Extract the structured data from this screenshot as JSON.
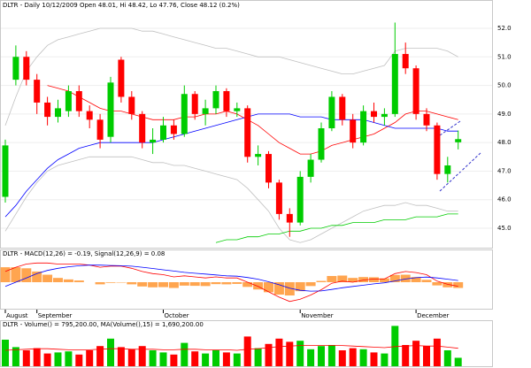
{
  "chart_data": [
    {
      "type": "candlestick",
      "title": "DLTR - Daily 10/12/2009 Open 48.01, Hi 48.42, Lo 47.76, Close 48.12 (0.2%)",
      "categories": [
        "August",
        null,
        null,
        "September",
        null,
        null,
        null,
        null,
        null,
        null,
        null,
        null,
        null,
        null,
        null,
        "October",
        null,
        null,
        null,
        null,
        null,
        null,
        null,
        null,
        null,
        null,
        null,
        null,
        "November",
        null,
        null,
        null,
        null,
        null,
        null,
        null,
        null,
        null,
        null,
        "December",
        null,
        null,
        null,
        null
      ],
      "open": [
        46.1,
        50.2,
        51.0,
        50.2,
        49.4,
        48.9,
        49.1,
        49.8,
        49.1,
        48.8,
        48.2,
        50.9,
        49.6,
        49.0,
        48.0,
        48.1,
        48.6,
        48.3,
        49.7,
        49.0,
        49.2,
        49.8,
        49.1,
        49.2,
        47.5,
        47.6,
        46.6,
        45.5,
        45.2,
        46.8,
        47.4,
        48.5,
        49.6,
        48.8,
        48.0,
        49.1,
        48.9,
        49.0,
        51.1,
        50.6,
        49.0,
        48.6,
        46.9,
        48.01
      ],
      "high": [
        48.1,
        51.4,
        51.2,
        50.4,
        49.6,
        49.5,
        50.0,
        50.0,
        49.3,
        49.0,
        50.3,
        51.0,
        49.8,
        49.1,
        48.5,
        48.9,
        48.8,
        50.0,
        49.8,
        49.5,
        50.0,
        49.9,
        49.4,
        49.3,
        47.9,
        47.7,
        46.7,
        45.7,
        47.0,
        47.6,
        48.7,
        49.8,
        49.7,
        49.0,
        49.3,
        49.4,
        49.2,
        52.2,
        51.5,
        50.7,
        49.2,
        48.7,
        47.5,
        48.42
      ],
      "low": [
        45.9,
        50.0,
        50.0,
        49.0,
        48.6,
        48.7,
        48.9,
        48.9,
        48.5,
        47.8,
        48.0,
        49.4,
        48.8,
        47.8,
        47.6,
        48.0,
        48.1,
        48.2,
        48.8,
        48.6,
        49.0,
        48.9,
        48.9,
        47.3,
        47.2,
        46.4,
        45.3,
        44.7,
        45.1,
        46.6,
        47.3,
        48.4,
        48.6,
        47.8,
        47.9,
        48.7,
        48.6,
        48.9,
        50.4,
        48.8,
        48.4,
        46.7,
        46.6,
        47.76
      ],
      "close": [
        47.9,
        51.0,
        50.2,
        49.4,
        48.9,
        49.2,
        49.8,
        49.1,
        48.8,
        48.1,
        50.1,
        49.6,
        49.0,
        48.0,
        48.1,
        48.6,
        48.3,
        49.7,
        49.0,
        49.2,
        49.8,
        49.1,
        49.2,
        47.5,
        47.6,
        46.6,
        45.5,
        45.2,
        46.8,
        47.4,
        48.5,
        49.6,
        48.8,
        48.0,
        49.1,
        48.9,
        49.0,
        51.1,
        50.6,
        49.0,
        48.6,
        46.9,
        47.2,
        48.12
      ],
      "up_color": "#00cc00",
      "down_color": "#ff0000",
      "series": [
        {
          "color": "#c0c0c0",
          "values": [
            48.6,
            49.6,
            50.5,
            51.0,
            51.4,
            51.6,
            51.7,
            51.8,
            51.9,
            52.0,
            52.0,
            52.0,
            52.0,
            51.9,
            51.9,
            51.8,
            51.7,
            51.6,
            51.5,
            51.4,
            51.3,
            51.3,
            51.2,
            51.1,
            51.0,
            51.0,
            51.0,
            50.9,
            50.8,
            50.7,
            50.6,
            50.5,
            50.4,
            50.4,
            50.5,
            50.6,
            50.7,
            51.2,
            51.3,
            51.3,
            51.3,
            51.3,
            51.2,
            51.0
          ]
        },
        {
          "color": "#c0c0c0",
          "values": [
            44.9,
            45.5,
            46.1,
            46.6,
            47.0,
            47.2,
            47.3,
            47.4,
            47.5,
            47.5,
            47.5,
            47.5,
            47.5,
            47.4,
            47.3,
            47.3,
            47.2,
            47.2,
            47.1,
            47.0,
            46.9,
            46.8,
            46.7,
            46.4,
            46.0,
            45.6,
            45.0,
            44.6,
            44.5,
            44.6,
            44.8,
            45.0,
            45.2,
            45.4,
            45.6,
            45.7,
            45.8,
            45.8,
            45.9,
            45.8,
            45.8,
            45.7,
            45.6,
            45.6
          ]
        },
        {
          "color": "#ff0000",
          "values": [
            null,
            null,
            null,
            null,
            50.0,
            49.9,
            49.8,
            49.6,
            49.4,
            49.2,
            49.1,
            49.1,
            49.0,
            48.9,
            48.8,
            48.8,
            48.8,
            48.9,
            48.9,
            49.0,
            49.0,
            49.1,
            49.0,
            48.8,
            48.6,
            48.3,
            48.0,
            47.8,
            47.6,
            47.6,
            47.7,
            47.9,
            48.0,
            48.1,
            48.2,
            48.3,
            48.5,
            48.7,
            49.0,
            49.1,
            49.1,
            49.0,
            48.9,
            48.8
          ]
        },
        {
          "color": "#0000ff",
          "values": [
            45.4,
            45.8,
            46.3,
            46.7,
            47.1,
            47.4,
            47.6,
            47.8,
            47.9,
            48.0,
            48.0,
            48.0,
            48.0,
            48.0,
            48.0,
            48.1,
            48.2,
            48.3,
            48.4,
            48.5,
            48.6,
            48.7,
            48.8,
            48.9,
            49.0,
            49.0,
            49.0,
            49.0,
            48.9,
            48.9,
            48.9,
            48.8,
            48.8,
            48.8,
            48.8,
            48.7,
            48.6,
            48.5,
            48.5,
            48.5,
            48.5,
            48.5,
            48.4,
            48.4
          ]
        },
        {
          "color": "#00cc00",
          "values": [
            null,
            null,
            null,
            null,
            null,
            null,
            null,
            null,
            null,
            null,
            null,
            null,
            null,
            null,
            null,
            null,
            null,
            null,
            null,
            null,
            44.5,
            44.6,
            44.6,
            44.7,
            44.7,
            44.8,
            44.8,
            44.9,
            44.9,
            45.0,
            45.0,
            45.1,
            45.1,
            45.2,
            45.2,
            45.2,
            45.3,
            45.3,
            45.3,
            45.4,
            45.4,
            45.4,
            45.5,
            45.5
          ]
        }
      ],
      "ylim": [
        44.32,
        52.99
      ],
      "yticks": [
        {
          "value": 45,
          "label": "45.0"
        },
        {
          "value": 46,
          "label": "46.0"
        },
        {
          "value": 47,
          "label": "47.0"
        },
        {
          "value": 48,
          "label": "48.0"
        },
        {
          "value": 49,
          "label": "49.0"
        },
        {
          "value": 50,
          "label": "50.0"
        },
        {
          "value": 51,
          "label": "51.0"
        },
        {
          "value": 52,
          "label": "52.0"
        }
      ]
    },
    {
      "type": "macd",
      "title": "DLTR - MACD(12,26) = -0.19, Signal(12,26,9) = 0.08",
      "histogram_color": "#ffa54f",
      "histogram": [
        0.7,
        0.7,
        0.65,
        0.5,
        0.35,
        0.2,
        0.13,
        0.08,
        0,
        -0.1,
        -0.03,
        -0.02,
        -0.1,
        -0.2,
        -0.24,
        -0.23,
        -0.27,
        -0.16,
        -0.17,
        -0.18,
        -0.09,
        -0.1,
        -0.08,
        -0.22,
        -0.34,
        -0.47,
        -0.58,
        -0.62,
        -0.42,
        -0.18,
        0.06,
        0.29,
        0.31,
        0.2,
        0.24,
        0.23,
        0.18,
        0.34,
        0.35,
        0.24,
        0.11,
        -0.15,
        -0.24,
        -0.27
      ],
      "series": [
        {
          "color": "#ff0000",
          "values": [
            0.5,
            0.7,
            0.85,
            0.9,
            0.9,
            0.85,
            0.85,
            0.85,
            0.8,
            0.7,
            0.75,
            0.75,
            0.65,
            0.5,
            0.4,
            0.35,
            0.25,
            0.3,
            0.25,
            0.2,
            0.25,
            0.2,
            0.2,
            0.0,
            -0.2,
            -0.45,
            -0.7,
            -0.9,
            -0.8,
            -0.6,
            -0.35,
            -0.05,
            0.05,
            0.0,
            0.1,
            0.15,
            0.15,
            0.4,
            0.5,
            0.45,
            0.35,
            0.05,
            -0.1,
            -0.19
          ]
        },
        {
          "color": "#0000ff",
          "values": [
            -0.2,
            0.0,
            0.2,
            0.4,
            0.55,
            0.65,
            0.72,
            0.77,
            0.8,
            0.8,
            0.78,
            0.77,
            0.75,
            0.7,
            0.64,
            0.58,
            0.52,
            0.46,
            0.42,
            0.38,
            0.34,
            0.3,
            0.28,
            0.22,
            0.14,
            0.02,
            -0.12,
            -0.28,
            -0.38,
            -0.42,
            -0.41,
            -0.34,
            -0.26,
            -0.2,
            -0.14,
            -0.08,
            -0.03,
            0.06,
            0.15,
            0.21,
            0.24,
            0.2,
            0.14,
            0.08
          ]
        }
      ],
      "ylim": [
        -1.2,
        1.2
      ]
    },
    {
      "type": "volume",
      "title": "DLTR - Volume() = 795,200.00, MA(Volume(),15) = 1,690,200.00",
      "values": [
        2500000,
        1800000,
        1500000,
        1700000,
        1200000,
        1300000,
        1400000,
        1100000,
        1500000,
        1900000,
        2600000,
        1800000,
        1600000,
        1900000,
        1500000,
        1300000,
        1100000,
        2200000,
        1400000,
        1200000,
        1500000,
        1300000,
        1200000,
        2800000,
        1700000,
        2100000,
        2600000,
        2300000,
        2400000,
        1600000,
        1900000,
        2000000,
        1500000,
        1700000,
        1600000,
        1300000,
        1200000,
        3800000,
        2000000,
        2400000,
        1900000,
        2600000,
        1500000,
        795200
      ],
      "series": [
        {
          "color": "#ff0000",
          "values": [
            1500000,
            1550000,
            1600000,
            1650000,
            1650000,
            1600000,
            1550000,
            1550000,
            1550000,
            1600000,
            1650000,
            1650000,
            1600000,
            1600000,
            1600000,
            1550000,
            1550000,
            1600000,
            1600000,
            1550000,
            1550000,
            1550000,
            1500000,
            1600000,
            1650000,
            1750000,
            1850000,
            1900000,
            1950000,
            1950000,
            1950000,
            1950000,
            1950000,
            1900000,
            1850000,
            1800000,
            1750000,
            1850000,
            1900000,
            1950000,
            1900000,
            1900000,
            1800000,
            1690200
          ]
        }
      ],
      "ylim": [
        0,
        4000000
      ]
    }
  ]
}
